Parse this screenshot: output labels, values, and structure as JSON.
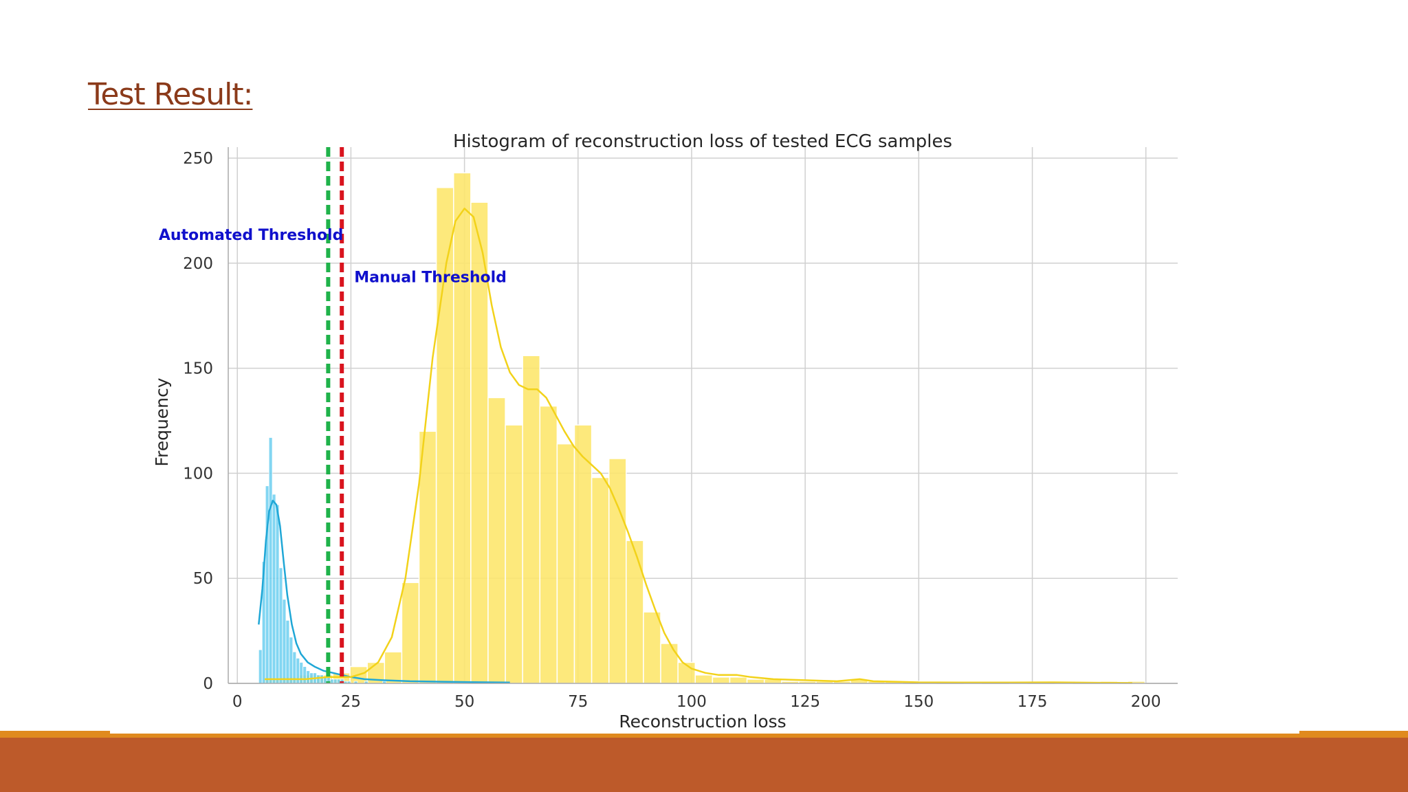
{
  "slide": {
    "title": "Test Result: "
  },
  "colors": {
    "title": "#8b3a1a",
    "footer_band": "#bd5a2a",
    "footer_accent": "#e08a1e",
    "series_low": "#6ccff0",
    "kde_low": "#1fa7d6",
    "series_high": "#fde66a",
    "kde_high": "#f2d21a",
    "automated_line": "#1fb24a",
    "manual_line": "#d9141e",
    "annotation": "#1010cc",
    "grid": "#d0d0d0"
  },
  "chart_data": {
    "type": "bar",
    "title": "Histogram of reconstruction loss of tested ECG samples",
    "xlabel": "Reconstruction loss",
    "ylabel": "Frequency",
    "xlim": [
      -2,
      207
    ],
    "ylim": [
      0,
      250
    ],
    "x_ticks": [
      0,
      25,
      50,
      75,
      100,
      125,
      150,
      175,
      200
    ],
    "y_ticks": [
      0,
      50,
      100,
      150,
      200,
      250
    ],
    "grid": true,
    "series": [
      {
        "bin_width": 0.75,
        "bins": [
          [
            4.7,
            16
          ],
          [
            5.45,
            58
          ],
          [
            6.2,
            94
          ],
          [
            6.95,
            117
          ],
          [
            7.7,
            90
          ],
          [
            8.45,
            85
          ],
          [
            9.2,
            55
          ],
          [
            9.95,
            40
          ],
          [
            10.7,
            30
          ],
          [
            11.45,
            22
          ],
          [
            12.2,
            15
          ],
          [
            12.95,
            12
          ],
          [
            13.7,
            10
          ],
          [
            14.45,
            8
          ],
          [
            15.2,
            6
          ],
          [
            15.95,
            5
          ],
          [
            16.7,
            5
          ],
          [
            17.45,
            4
          ],
          [
            18.2,
            4
          ],
          [
            18.95,
            3
          ],
          [
            19.7,
            3
          ],
          [
            20.45,
            2
          ],
          [
            21.2,
            2
          ],
          [
            21.95,
            2
          ],
          [
            22.7,
            2
          ],
          [
            23.45,
            1
          ],
          [
            24.2,
            1
          ],
          [
            25.7,
            1
          ],
          [
            28.0,
            1
          ],
          [
            32.0,
            1
          ]
        ],
        "kde": [
          [
            4.7,
            28
          ],
          [
            5.5,
            45
          ],
          [
            6.3,
            68
          ],
          [
            7.0,
            82
          ],
          [
            7.8,
            87
          ],
          [
            8.6,
            85
          ],
          [
            9.4,
            75
          ],
          [
            10.2,
            58
          ],
          [
            11.0,
            42
          ],
          [
            12.0,
            28
          ],
          [
            13.0,
            19
          ],
          [
            14.0,
            14
          ],
          [
            15.5,
            10
          ],
          [
            17.0,
            8
          ],
          [
            19.0,
            6
          ],
          [
            21.0,
            5
          ],
          [
            23.0,
            4
          ],
          [
            25.0,
            3
          ],
          [
            28.0,
            2
          ],
          [
            32.0,
            1.5
          ],
          [
            38.0,
            1
          ],
          [
            45.0,
            0.8
          ],
          [
            52.0,
            0.6
          ],
          [
            60.0,
            0.4
          ]
        ]
      },
      {
        "bin_width": 3.8,
        "bins": [
          [
            5.8,
            2
          ],
          [
            9.6,
            3
          ],
          [
            13.4,
            4
          ],
          [
            17.2,
            4
          ],
          [
            21.0,
            5
          ],
          [
            24.8,
            8
          ],
          [
            28.6,
            10
          ],
          [
            32.4,
            15
          ],
          [
            36.2,
            48
          ],
          [
            40.0,
            120
          ],
          [
            43.8,
            236
          ],
          [
            47.6,
            243
          ],
          [
            51.4,
            229
          ],
          [
            55.2,
            136
          ],
          [
            59.0,
            123
          ],
          [
            62.8,
            156
          ],
          [
            66.6,
            132
          ],
          [
            70.4,
            114
          ],
          [
            74.2,
            123
          ],
          [
            78.0,
            98
          ],
          [
            81.8,
            107
          ],
          [
            85.6,
            68
          ],
          [
            89.4,
            34
          ],
          [
            93.2,
            19
          ],
          [
            97.0,
            10
          ],
          [
            100.8,
            4
          ],
          [
            104.6,
            3
          ],
          [
            108.4,
            3
          ],
          [
            112.2,
            2
          ],
          [
            116.0,
            2
          ],
          [
            119.8,
            1
          ],
          [
            123.6,
            1
          ],
          [
            127.4,
            1
          ],
          [
            131.2,
            1
          ],
          [
            135.0,
            2
          ],
          [
            138.8,
            1
          ],
          [
            142.6,
            1
          ],
          [
            150.0,
            1
          ],
          [
            160.0,
            1
          ],
          [
            170.0,
            1
          ],
          [
            180.0,
            1
          ],
          [
            190.0,
            1
          ],
          [
            196.0,
            1
          ]
        ],
        "kde": [
          [
            6,
            2
          ],
          [
            10,
            2
          ],
          [
            15,
            2
          ],
          [
            20,
            3
          ],
          [
            25,
            3
          ],
          [
            28,
            5
          ],
          [
            31,
            10
          ],
          [
            34,
            22
          ],
          [
            37,
            50
          ],
          [
            40,
            95
          ],
          [
            43,
            155
          ],
          [
            46,
            200
          ],
          [
            48,
            220
          ],
          [
            50,
            226
          ],
          [
            52,
            222
          ],
          [
            54,
            205
          ],
          [
            56,
            180
          ],
          [
            58,
            160
          ],
          [
            60,
            148
          ],
          [
            62,
            142
          ],
          [
            64,
            140
          ],
          [
            66,
            140
          ],
          [
            68,
            136
          ],
          [
            70,
            128
          ],
          [
            72,
            120
          ],
          [
            74,
            113
          ],
          [
            76,
            108
          ],
          [
            78,
            104
          ],
          [
            80,
            100
          ],
          [
            82,
            93
          ],
          [
            84,
            83
          ],
          [
            86,
            72
          ],
          [
            88,
            60
          ],
          [
            90,
            47
          ],
          [
            92,
            35
          ],
          [
            94,
            24
          ],
          [
            96,
            16
          ],
          [
            98,
            10
          ],
          [
            100,
            7
          ],
          [
            103,
            5
          ],
          [
            106,
            4
          ],
          [
            110,
            4
          ],
          [
            113,
            3
          ],
          [
            118,
            2
          ],
          [
            125,
            1.5
          ],
          [
            132,
            1
          ],
          [
            137,
            2
          ],
          [
            140,
            1
          ],
          [
            145,
            0.8
          ],
          [
            150,
            0.5
          ],
          [
            160,
            0.4
          ],
          [
            170,
            0.4
          ],
          [
            180,
            0.5
          ],
          [
            190,
            0.3
          ],
          [
            197,
            0.2
          ]
        ]
      }
    ],
    "annotations": [
      {
        "text": "Automated Threshold",
        "x": 20.0,
        "line_color": "#1fb24a",
        "label_y": 211,
        "anchor": "end"
      },
      {
        "text": "Manual Threshold",
        "x": 23.0,
        "line_color": "#d9141e",
        "label_y": 191,
        "anchor": "start"
      }
    ]
  }
}
